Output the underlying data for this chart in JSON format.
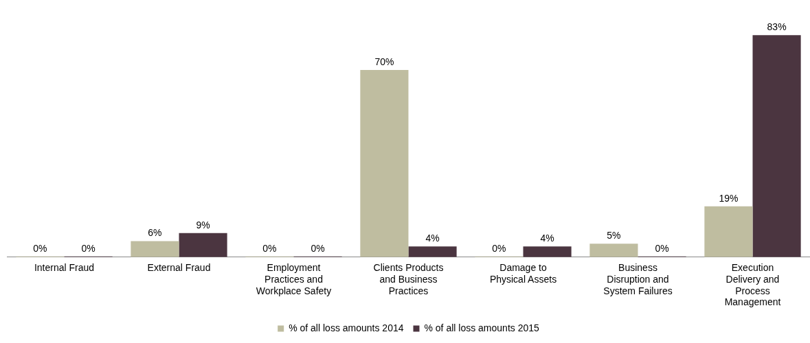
{
  "chart_data": {
    "type": "bar",
    "categories": [
      "Internal Fraud",
      "External Fraud",
      "Employment Practices and Workplace Safety",
      "Clients Products and Business Practices",
      "Damage to Physical Assets",
      "Business Disruption and System Failures",
      "Execution Delivery and Process Management"
    ],
    "series": [
      {
        "name": "% of all loss amounts 2014",
        "color": "#bfbda0",
        "values": [
          0,
          6,
          0,
          70,
          0,
          5,
          19
        ],
        "value_labels": [
          "0%",
          "6%",
          "0%",
          "70%",
          "0%",
          "5%",
          "19%"
        ]
      },
      {
        "name": "% of all loss amounts 2015",
        "color": "#4b3540",
        "values": [
          0,
          9,
          0,
          4,
          4,
          0,
          83
        ],
        "value_labels": [
          "0%",
          "9%",
          "0%",
          "4%",
          "4%",
          "0%",
          "83%"
        ]
      }
    ],
    "tick_labels": "x",
    "grid": false,
    "legend": "bottom"
  }
}
